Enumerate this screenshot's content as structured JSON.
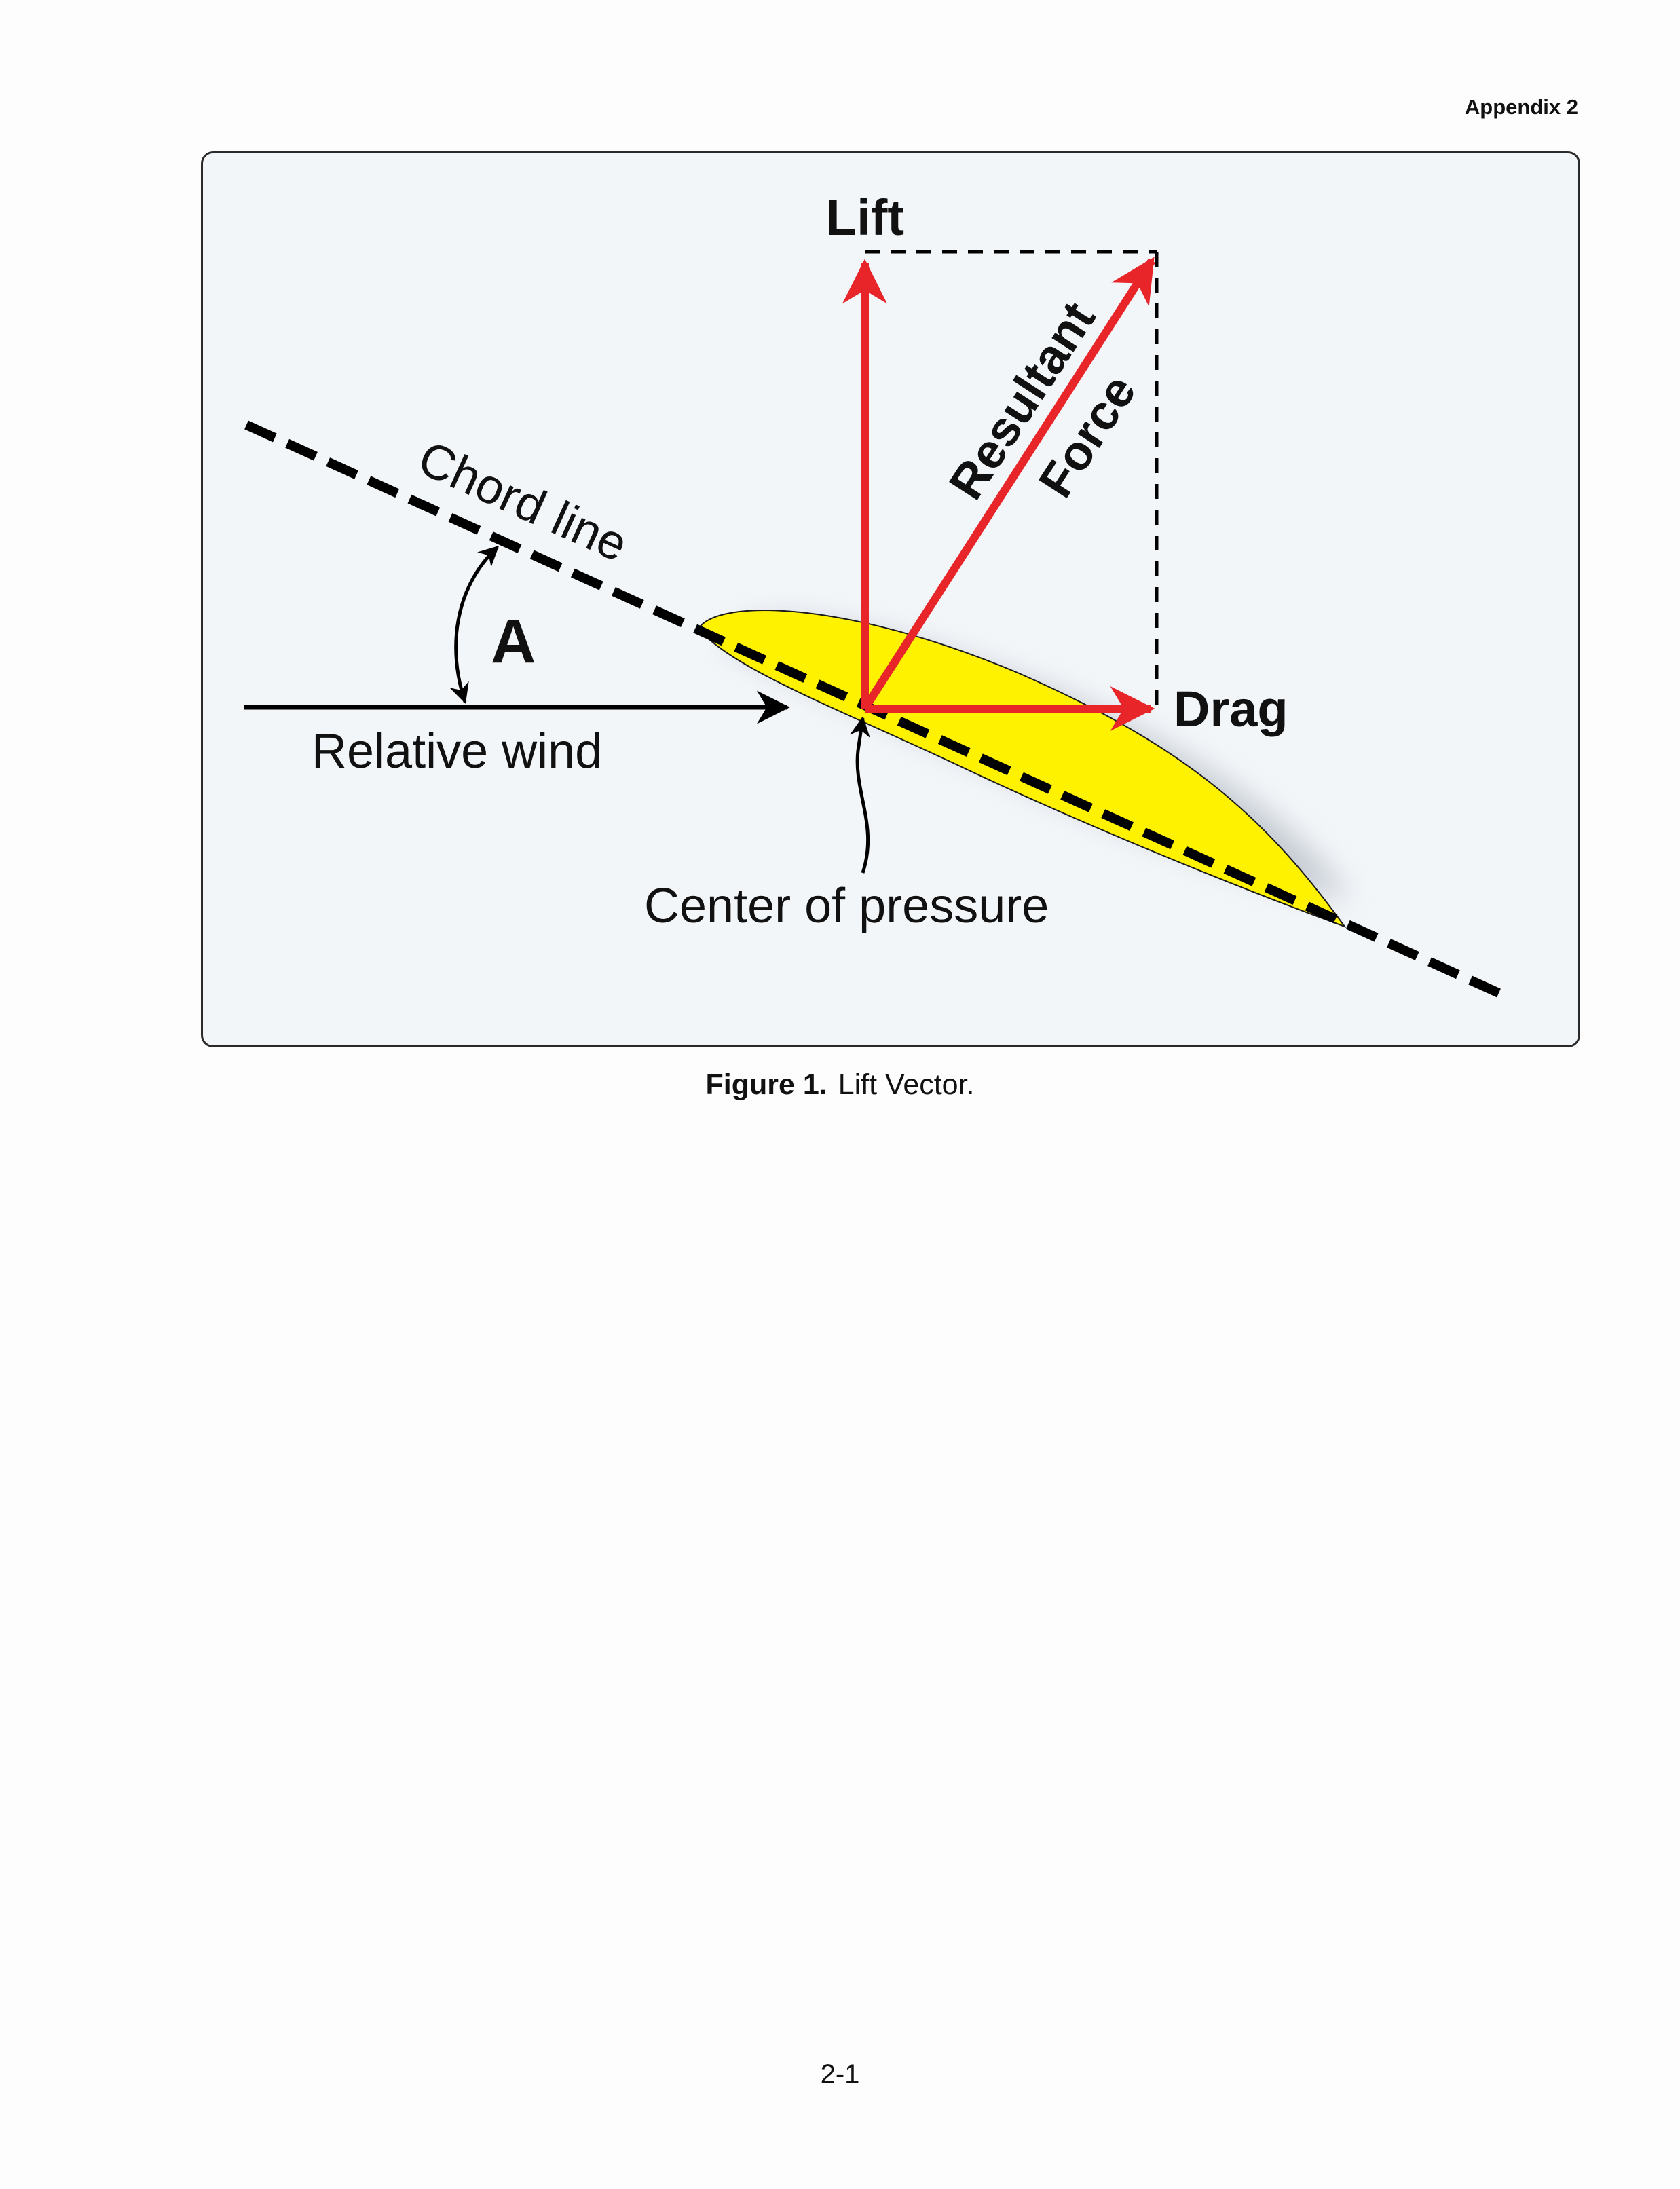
{
  "header": {
    "text": "Appendix 2"
  },
  "diagram": {
    "labels": {
      "lift": "Lift",
      "resultant": "Resultant",
      "force": "Force",
      "chord_line": "Chord line",
      "angle": "A",
      "relative_wind": "Relative wind",
      "drag": "Drag",
      "center_of_pressure": "Center of pressure"
    },
    "colors": {
      "force_vectors": "#e8262a",
      "airfoil": "#fff200",
      "panel_background": "#f3f6f9"
    }
  },
  "caption": {
    "label": "Figure 1.",
    "text": "Lift Vector."
  },
  "page_number": "2-1"
}
